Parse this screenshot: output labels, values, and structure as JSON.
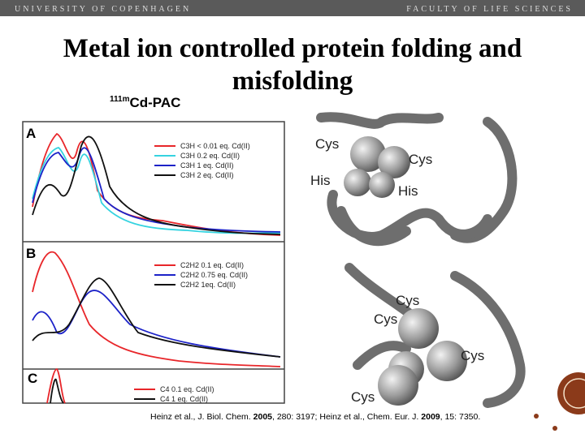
{
  "header": {
    "left": "UNIVERSITY OF COPENHAGEN",
    "right": "FACULTY OF LIFE SCIENCES"
  },
  "title": {
    "line1": "Metal ion controlled protein folding and",
    "line2": "misfolding"
  },
  "subtitle": {
    "sup": "111m",
    "text": "Cd-PAC"
  },
  "panels": [
    {
      "label": "A",
      "legend": [
        {
          "text": "C3H < 0.01 eq. Cd(II)",
          "color": "#e8262a"
        },
        {
          "text": "C3H 0.2 eq. Cd(II)",
          "color": "#35d3e0"
        },
        {
          "text": "C3H 1 eq. Cd(II)",
          "color": "#1c22c8"
        },
        {
          "text": "C3H 2 eq. Cd(II)",
          "color": "#111111"
        }
      ]
    },
    {
      "label": "B",
      "legend": [
        {
          "text": "C2H2 0.1 eq. Cd(II)",
          "color": "#e8262a"
        },
        {
          "text": "C2H2 0.75 eq. Cd(II)",
          "color": "#1c22c8"
        },
        {
          "text": "C2H2 1eq. Cd(II)",
          "color": "#111111"
        }
      ]
    },
    {
      "label": "C",
      "legend": [
        {
          "text": "C4 0.1 eq. Cd(II)",
          "color": "#e8262a"
        },
        {
          "text": "C4 1 eq. Cd(II)",
          "color": "#111111"
        }
      ]
    }
  ],
  "protein_labels": [
    "Cys",
    "Cys",
    "His",
    "His",
    "Cys",
    "Cys",
    "Cys",
    "Cys"
  ],
  "citation": [
    "Heinz et al., J. Biol. Chem. ",
    "2005",
    ", 280: 3197; Heinz et al., Chem. Eur. J. ",
    "2009",
    ", 15: 7350."
  ]
}
